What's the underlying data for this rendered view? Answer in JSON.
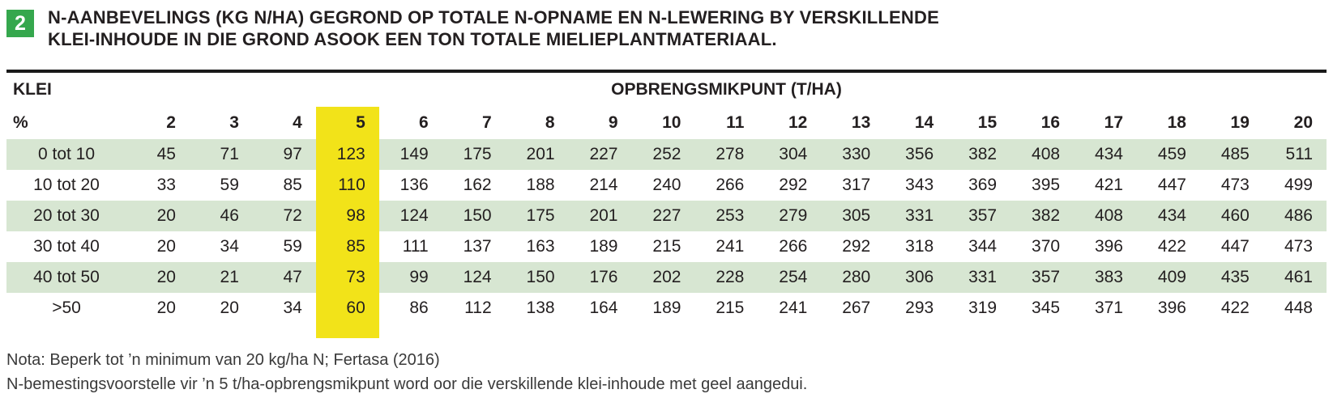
{
  "header": {
    "badge": "2",
    "title_line1": "N-AANBEVELINGS (KG N/HA) GEGROND OP TOTALE N-OPNAME EN N-LEWERING BY VERSKILLENDE",
    "title_line2": "KLEI-INHOUDE IN DIE GROND ASOOK EEN TON TOTALE MIELIEPLANTMATERIAAL."
  },
  "table": {
    "corner_label": "KLEI",
    "group_header": "OPBRENGSMIKPUNT (T/HA)",
    "unit_label": "%",
    "columns": [
      "2",
      "3",
      "4",
      "5",
      "6",
      "7",
      "8",
      "9",
      "10",
      "11",
      "12",
      "13",
      "14",
      "15",
      "16",
      "17",
      "18",
      "19",
      "20"
    ],
    "highlight_column": "5",
    "rows": [
      {
        "label": "0 tot 10",
        "values": [
          45,
          71,
          97,
          123,
          149,
          175,
          201,
          227,
          252,
          278,
          304,
          330,
          356,
          382,
          408,
          434,
          459,
          485,
          511
        ]
      },
      {
        "label": "10 tot 20",
        "values": [
          33,
          59,
          85,
          110,
          136,
          162,
          188,
          214,
          240,
          266,
          292,
          317,
          343,
          369,
          395,
          421,
          447,
          473,
          499
        ]
      },
      {
        "label": "20 tot 30",
        "values": [
          20,
          46,
          72,
          98,
          124,
          150,
          175,
          201,
          227,
          253,
          279,
          305,
          331,
          357,
          382,
          408,
          434,
          460,
          486
        ]
      },
      {
        "label": "30 tot 40",
        "values": [
          20,
          34,
          59,
          85,
          111,
          137,
          163,
          189,
          215,
          241,
          266,
          292,
          318,
          344,
          370,
          396,
          422,
          447,
          473
        ]
      },
      {
        "label": "40 tot 50",
        "values": [
          20,
          21,
          47,
          73,
          99,
          124,
          150,
          176,
          202,
          228,
          254,
          280,
          306,
          331,
          357,
          383,
          409,
          435,
          461
        ]
      },
      {
        "label": ">50",
        "values": [
          20,
          20,
          34,
          60,
          86,
          112,
          138,
          164,
          189,
          215,
          241,
          267,
          293,
          319,
          345,
          371,
          396,
          422,
          448
        ]
      }
    ]
  },
  "notes": [
    "Nota: Beperk tot ’n minimum van 20 kg/ha N; Fertasa (2016)",
    "N-bemestingsvoorstelle vir ’n 5 t/ha-opbrengsmikpunt word oor die verskillende klei-inhoude met geel aangedui."
  ],
  "colors": {
    "accent_green": "#35a74d",
    "row_green": "#d7e6d2",
    "highlight_yellow": "#f2e319",
    "rule_black": "#1a1a1a",
    "text_dark": "#231f20"
  }
}
